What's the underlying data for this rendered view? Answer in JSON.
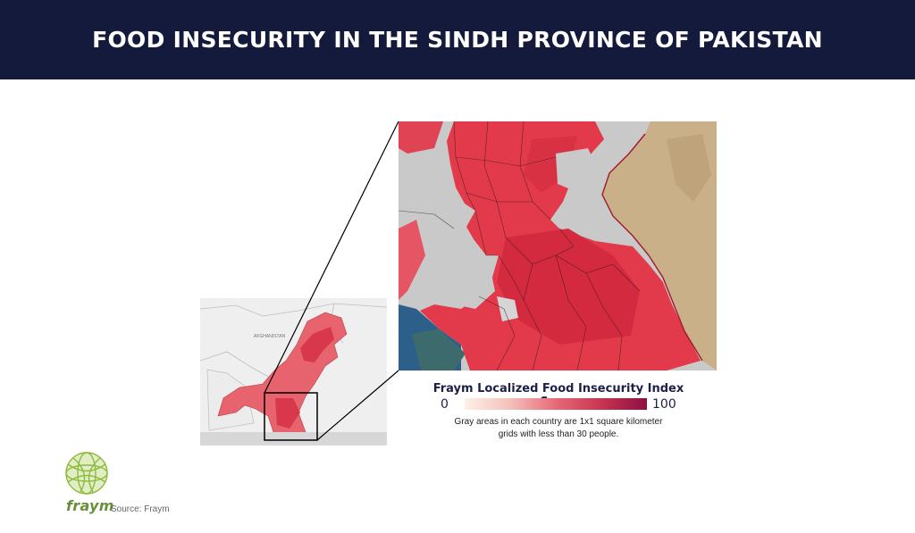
{
  "header": {
    "title": "FOOD INSECURITY IN THE SINDH PROVINCE OF PAKISTAN"
  },
  "inset_map": {
    "label": "AFGHANISTAN"
  },
  "legend": {
    "title": "Fraym Localized Food Insecurity Index Score",
    "min_label": "0",
    "max_label": "100",
    "note": "Gray areas in each country are 1x1 square kilometer grids with less than 30 people.",
    "colors": [
      "#fdf1e6",
      "#f4c0bb",
      "#e66a77",
      "#c83450",
      "#8e0f44"
    ]
  },
  "logo": {
    "wordmark": "fraym",
    "icon": "globe-icon",
    "color": "#8dbb3e"
  },
  "source": "Source: Fraym"
}
